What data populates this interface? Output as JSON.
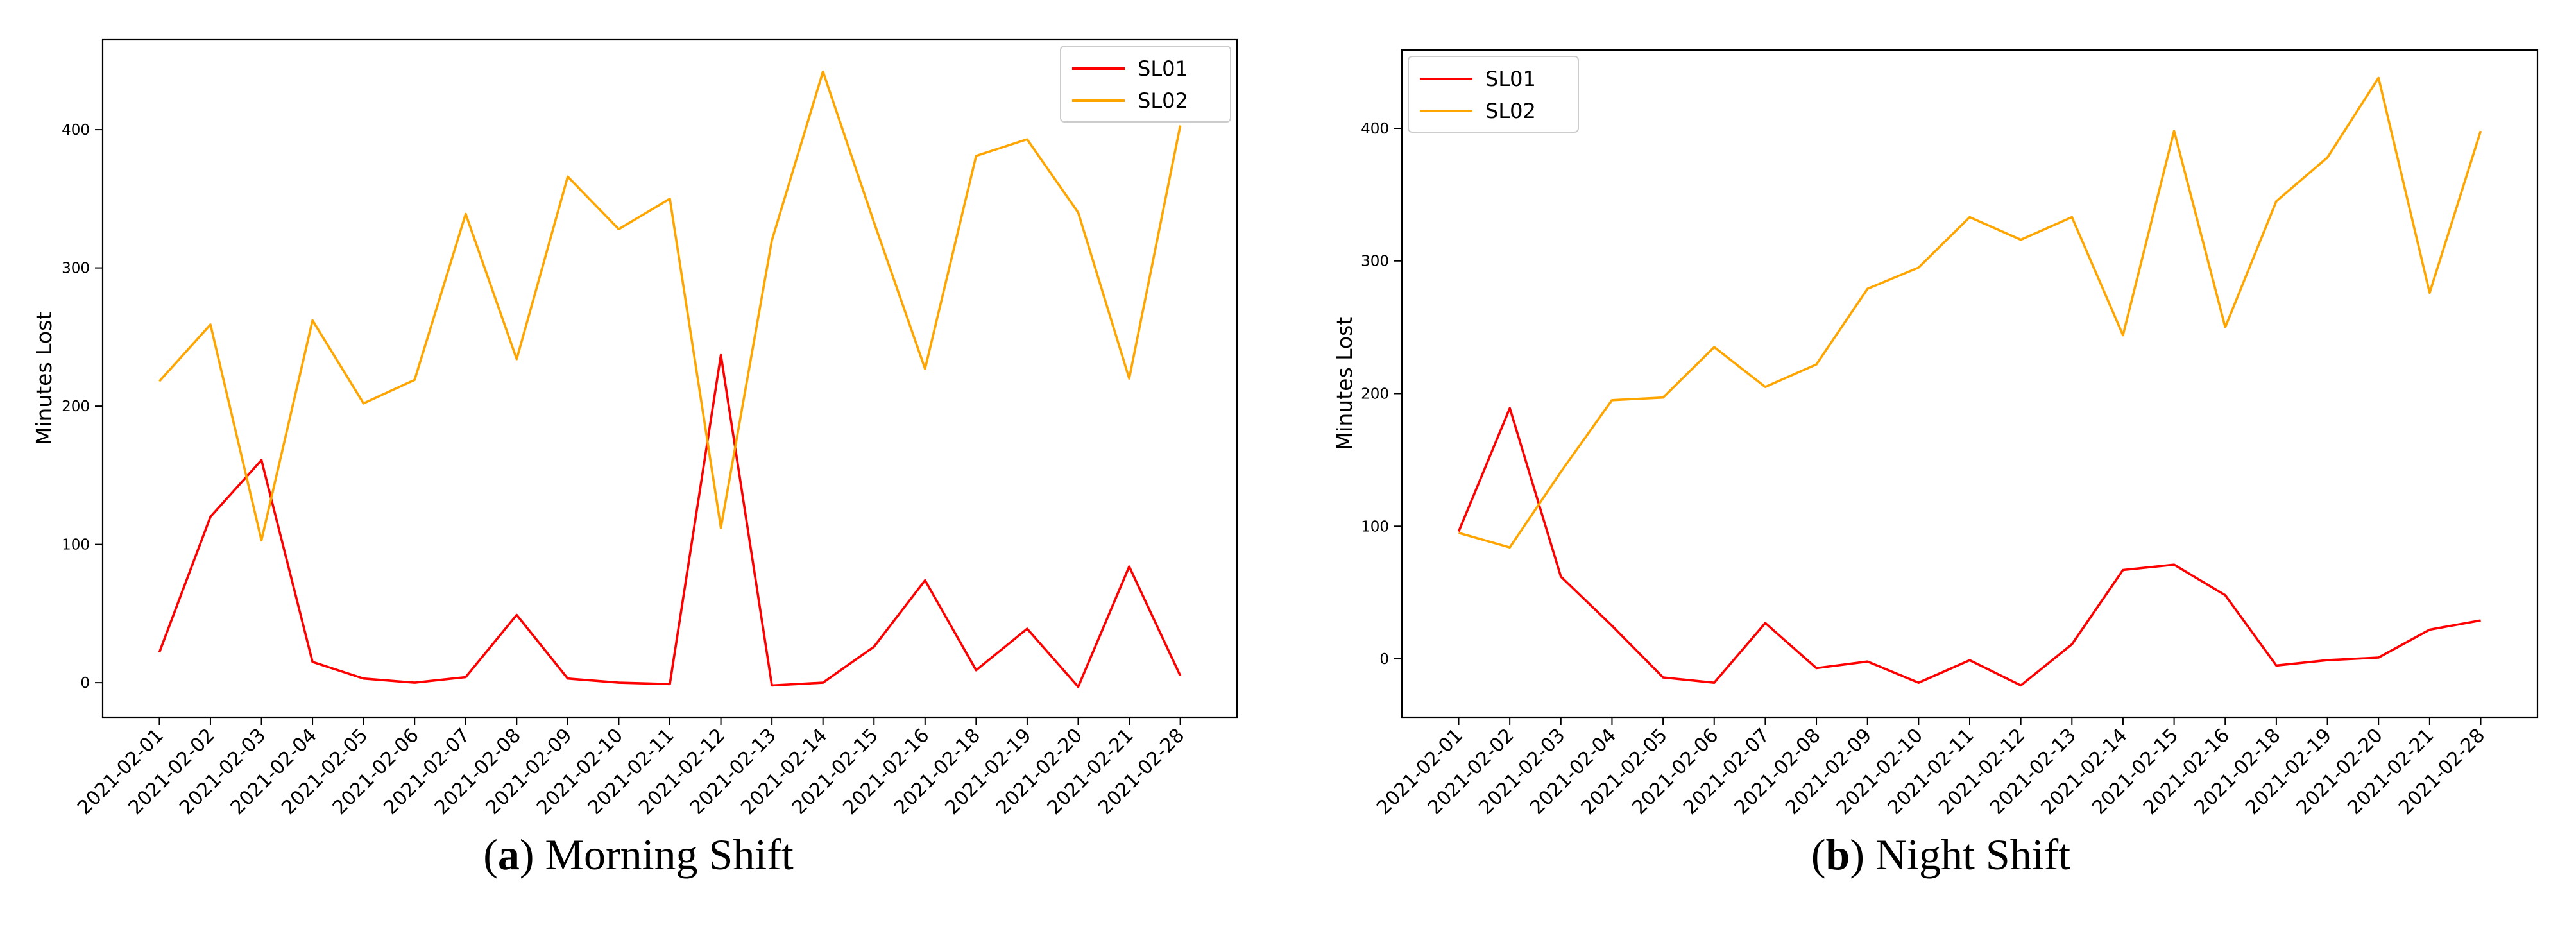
{
  "chart_data": [
    {
      "type": "line",
      "title": "",
      "xlabel": "",
      "ylabel": "Minutes Lost",
      "categories": [
        "2021-02-01",
        "2021-02-02",
        "2021-02-03",
        "2021-02-04",
        "2021-02-05",
        "2021-02-06",
        "2021-02-07",
        "2021-02-08",
        "2021-02-09",
        "2021-02-10",
        "2021-02-11",
        "2021-02-12",
        "2021-02-13",
        "2021-02-14",
        "2021-02-15",
        "2021-02-16",
        "2021-02-18",
        "2021-02-19",
        "2021-02-20",
        "2021-02-21",
        "2021-02-28"
      ],
      "yticks": [
        0,
        100,
        200,
        300,
        400
      ],
      "ylim": [
        -25,
        465
      ],
      "grid": false,
      "legend_position": "top-right",
      "series": [
        {
          "name": "SL01",
          "color": "#ff0000",
          "values": [
            22,
            120,
            161,
            15,
            3,
            0,
            4,
            49,
            3,
            0,
            -1,
            237,
            -2,
            0,
            26,
            74,
            9,
            39,
            -3,
            84,
            5
          ]
        },
        {
          "name": "SL02",
          "color": "#ffa500",
          "values": [
            218,
            259,
            103,
            262,
            202,
            219,
            339,
            234,
            366,
            328,
            350,
            112,
            320,
            442,
            333,
            227,
            381,
            393,
            340,
            220,
            403
          ]
        }
      ],
      "caption": {
        "label": "a",
        "text": " Morning Shift"
      }
    },
    {
      "type": "line",
      "title": "",
      "xlabel": "",
      "ylabel": "Minutes Lost",
      "categories": [
        "2021-02-01",
        "2021-02-02",
        "2021-02-03",
        "2021-02-04",
        "2021-02-05",
        "2021-02-06",
        "2021-02-07",
        "2021-02-08",
        "2021-02-09",
        "2021-02-10",
        "2021-02-11",
        "2021-02-12",
        "2021-02-13",
        "2021-02-14",
        "2021-02-15",
        "2021-02-16",
        "2021-02-18",
        "2021-02-19",
        "2021-02-20",
        "2021-02-21",
        "2021-02-28"
      ],
      "yticks": [
        0,
        100,
        200,
        300,
        400
      ],
      "ylim": [
        -44,
        459
      ],
      "grid": false,
      "legend_position": "top-left",
      "series": [
        {
          "name": "SL01",
          "color": "#ff0000",
          "values": [
            96,
            189,
            62,
            25,
            -14,
            -18,
            27,
            -7,
            -2,
            -18,
            -1,
            -20,
            11,
            67,
            71,
            48,
            -5,
            -1,
            1,
            22,
            29
          ]
        },
        {
          "name": "SL02",
          "color": "#ffa500",
          "values": [
            95,
            84,
            141,
            195,
            197,
            235,
            205,
            222,
            279,
            295,
            333,
            316,
            333,
            244,
            398,
            250,
            345,
            378,
            438,
            276,
            398
          ]
        }
      ],
      "caption": {
        "label": "b",
        "text": " Night Shift"
      }
    }
  ]
}
